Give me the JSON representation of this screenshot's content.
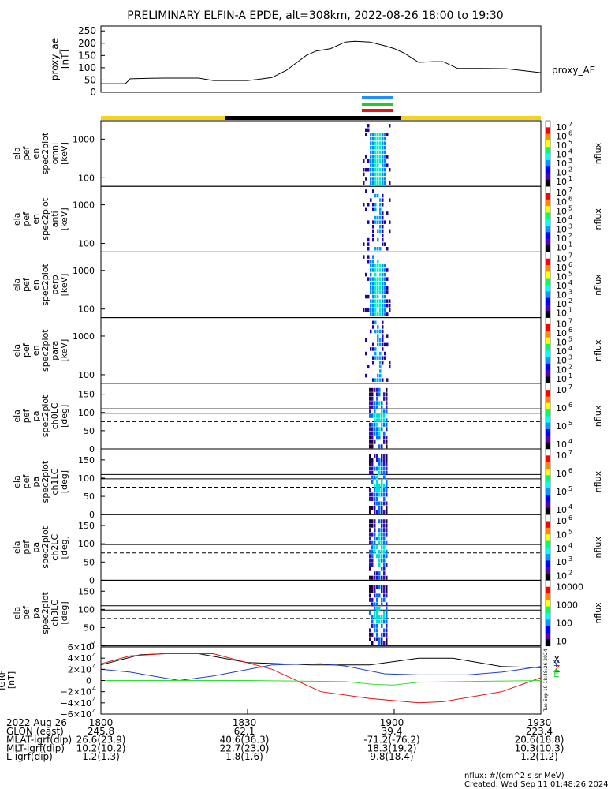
{
  "title": "PRELIMINARY ELFIN-A EPDE, alt=308km, 2022-08-26 18:00 to 19:30",
  "footer": {
    "units": "nflux: #/(cm^2 s sr MeV)",
    "created": "Created: Wed Sep 11 01:48:26 2024",
    "vertical_stamp": "Tue Sep 10 18:48:26 2024"
  },
  "colors": {
    "proxy_line": "#000000",
    "bar_yellow": "#f6d219",
    "bar_black": "#000000",
    "marker_blue": "#1e90ff",
    "marker_green": "#22cc22",
    "marker_red": "#ee1111",
    "igrf_x": "#000000",
    "igrf_y": "#1f3fcf",
    "igrf_z": "#e01414",
    "igrf_total": "#33dd33"
  },
  "proxy_ae": {
    "ylabel_lines": [
      "proxy_ae",
      "[nT]"
    ],
    "legend": "proxy_AE",
    "ticks": [
      "0",
      "50",
      "100",
      "150",
      "200",
      "250"
    ]
  },
  "panels": [
    {
      "ylabel_lines": [
        "ela",
        "pef",
        "en",
        "spec2plot",
        "omni",
        "[keV]"
      ],
      "yticks": [
        "100",
        "1000"
      ],
      "colorbar_ticks": [
        "10",
        "10",
        "10",
        "10",
        "10",
        "10",
        "10"
      ],
      "colorbar_exps": [
        "7",
        "6",
        "5",
        "4",
        "3",
        "2",
        "1"
      ],
      "colorbar_label": "nflux"
    },
    {
      "ylabel_lines": [
        "ela",
        "pef",
        "en",
        "spec2plot",
        "anti",
        "[keV]"
      ],
      "yticks": [
        "100",
        "1000"
      ],
      "colorbar_ticks": [
        "10",
        "10",
        "10",
        "10",
        "10",
        "10",
        "10"
      ],
      "colorbar_exps": [
        "7",
        "6",
        "5",
        "4",
        "3",
        "2",
        "1"
      ],
      "colorbar_label": "nflux"
    },
    {
      "ylabel_lines": [
        "ela",
        "pef",
        "en",
        "spec2plot",
        "perp",
        "[keV]"
      ],
      "yticks": [
        "100",
        "1000"
      ],
      "colorbar_ticks": [
        "10",
        "10",
        "10",
        "10",
        "10",
        "10",
        "10"
      ],
      "colorbar_exps": [
        "7",
        "6",
        "5",
        "4",
        "3",
        "2",
        "1"
      ],
      "colorbar_label": "nflux"
    },
    {
      "ylabel_lines": [
        "ela",
        "pef",
        "en",
        "spec2plot",
        "para",
        "[keV]"
      ],
      "yticks": [
        "100",
        "1000"
      ],
      "colorbar_ticks": [
        "10",
        "10",
        "10",
        "10",
        "10",
        "10",
        "10"
      ],
      "colorbar_exps": [
        "7",
        "6",
        "5",
        "4",
        "3",
        "2",
        "1"
      ],
      "colorbar_label": "nflux"
    },
    {
      "ylabel_lines": [
        "ela",
        "pef",
        "pa",
        "spec2plot",
        "ch0LC",
        "[deg]"
      ],
      "yticks": [
        "0",
        "50",
        "100",
        "150"
      ],
      "colorbar_ticks": [
        "10",
        "10",
        "10",
        "10"
      ],
      "colorbar_exps": [
        "7",
        "6",
        "5",
        "4"
      ],
      "colorbar_label": "nflux"
    },
    {
      "ylabel_lines": [
        "ela",
        "pef",
        "pa",
        "spec2plot",
        "ch1LC",
        "[deg]"
      ],
      "yticks": [
        "0",
        "50",
        "100",
        "150"
      ],
      "colorbar_ticks": [
        "10",
        "10",
        "10",
        "10"
      ],
      "colorbar_exps": [
        "7",
        "6",
        "5",
        "4"
      ],
      "colorbar_label": "nflux"
    },
    {
      "ylabel_lines": [
        "ela",
        "pef",
        "pa",
        "spec2plot",
        "ch2LC",
        "[deg]"
      ],
      "yticks": [
        "0",
        "50",
        "100",
        "150"
      ],
      "colorbar_ticks": [
        "10",
        "10",
        "10",
        "10",
        "10"
      ],
      "colorbar_exps": [
        "6",
        "5",
        "4",
        "3",
        "2"
      ],
      "colorbar_label": "nflux"
    },
    {
      "ylabel_lines": [
        "ela",
        "pef",
        "pa",
        "spec2plot",
        "ch3LC",
        "[deg]"
      ],
      "yticks": [
        "0",
        "50",
        "100",
        "150"
      ],
      "colorbar_ticks": [
        "10000",
        "1000",
        "100",
        "10"
      ],
      "colorbar_exps": [
        "",
        "",
        "",
        ""
      ],
      "colorbar_label": "nflux"
    }
  ],
  "igrf": {
    "ylabel_lines": [
      "IGRF",
      "[nT]"
    ],
    "ticks": [
      "6×10",
      "4×10",
      "2×10",
      "0",
      "−2×10",
      "−4×10",
      "−6×10"
    ],
    "tick_exps": [
      "4",
      "4",
      "4",
      "",
      "4",
      "4",
      "4"
    ],
    "legend": [
      "X",
      "Y",
      "Z",
      "E"
    ]
  },
  "xaxis": {
    "rows": [
      {
        "label": "2022 Aug 26",
        "values": [
          "1800",
          "1830",
          "1900",
          "1930"
        ]
      },
      {
        "label": "GLON (east)",
        "values": [
          "245.8",
          "62.1",
          "39.4",
          "223.4"
        ]
      },
      {
        "label": "MLAT-igrf(dip)",
        "values": [
          "26.6(23.9)",
          "40.6(36.3)",
          "-71.2(-76.2)",
          "20.6(18.8)"
        ]
      },
      {
        "label": "MLT-igrf(dip)",
        "values": [
          "10.2(10.2)",
          "22.7(23.0)",
          "18.3(19.2)",
          "10.3(10.3)"
        ]
      },
      {
        "label": "L-igrf(dip)",
        "values": [
          "1.2(1.3)",
          "1.8(1.6)",
          "9.8(18.4)",
          "1.2(1.2)"
        ]
      }
    ]
  },
  "chart_data": [
    {
      "type": "line",
      "title": "proxy_ae",
      "x_unit": "UT hhmm",
      "xlim": [
        "1800",
        "1930"
      ],
      "ylim": [
        0,
        270
      ],
      "series": [
        {
          "name": "proxy_AE",
          "x": [
            "1800",
            "1805",
            "1806",
            "1810",
            "1813",
            "1820",
            "1823",
            "1830",
            "1832",
            "1835",
            "1838",
            "1842",
            "1844",
            "1847",
            "1850",
            "1852",
            "1855",
            "1858",
            "1900",
            "1902",
            "1905",
            "1908",
            "1910",
            "1913",
            "1918",
            "1923",
            "1930"
          ],
          "y": [
            35,
            35,
            55,
            57,
            58,
            58,
            48,
            48,
            52,
            60,
            90,
            150,
            168,
            178,
            205,
            208,
            205,
            190,
            178,
            160,
            122,
            125,
            125,
            97,
            97,
            96,
            80
          ]
        }
      ]
    },
    {
      "type": "heatmap",
      "title": "ela pef en spec2plot omni",
      "x_range": [
        "1854",
        "1901"
      ],
      "y_range_keV": [
        60,
        2000
      ],
      "zlim_exp": [
        1,
        7
      ]
    },
    {
      "type": "line",
      "title": "IGRF",
      "xlim": [
        "1800",
        "1930"
      ],
      "ylim": [
        -60000,
        60000
      ],
      "series": [
        {
          "name": "X",
          "x": [
            "1800",
            "1808",
            "1813",
            "1820",
            "1830",
            "1843",
            "1855",
            "1905",
            "1912",
            "1922",
            "1930"
          ],
          "y": [
            28000,
            46000,
            48000,
            48000,
            32000,
            28000,
            28000,
            40000,
            40000,
            25000,
            23000
          ]
        },
        {
          "name": "Y",
          "x": [
            "1800",
            "1806",
            "1816",
            "1823",
            "1835",
            "1845",
            "1850",
            "1858",
            "1905",
            "1915",
            "1922",
            "1930"
          ],
          "y": [
            20000,
            15000,
            0,
            8000,
            28000,
            30000,
            26000,
            12000,
            10000,
            10000,
            15000,
            25000
          ]
        },
        {
          "name": "Z",
          "x": [
            "1800",
            "1806",
            "1813",
            "1823",
            "1835",
            "1845",
            "1855",
            "1905",
            "1910",
            "1922",
            "1930"
          ],
          "y": [
            30000,
            44000,
            48000,
            48000,
            20000,
            -20000,
            -32000,
            -40000,
            -38000,
            -20000,
            5000
          ]
        },
        {
          "name": "E",
          "x": [
            "1800",
            "1805",
            "1830",
            "1850",
            "1856",
            "1900",
            "1905",
            "1930"
          ],
          "y": [
            0,
            0,
            0,
            -2000,
            -7000,
            -8000,
            -3000,
            0
          ]
        }
      ]
    }
  ]
}
